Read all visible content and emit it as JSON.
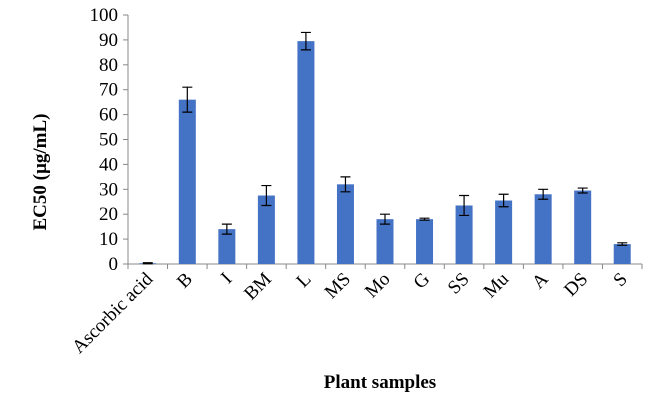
{
  "chart_data": {
    "type": "bar",
    "title": "",
    "xlabel": "Plant samples",
    "ylabel": "EC50 (µg/mL)",
    "ylim": [
      0,
      100
    ],
    "yticks": [
      0,
      10,
      20,
      30,
      40,
      50,
      60,
      70,
      80,
      90,
      100
    ],
    "grid": false,
    "legend": "none",
    "bar_color": "#4472C4",
    "categories": [
      "Ascorbic acid",
      "B",
      "I",
      "BM",
      "L",
      "MS",
      "Mo",
      "G",
      "SS",
      "Mu",
      "A",
      "DS",
      "S"
    ],
    "values": [
      0.3,
      66,
      14,
      27.5,
      89.5,
      32,
      18,
      18,
      23.5,
      25.5,
      28,
      29.5,
      8
    ],
    "errors": [
      0.2,
      5,
      2,
      4,
      3.5,
      3,
      2,
      0.4,
      4,
      2.5,
      2,
      1,
      0.5
    ]
  }
}
